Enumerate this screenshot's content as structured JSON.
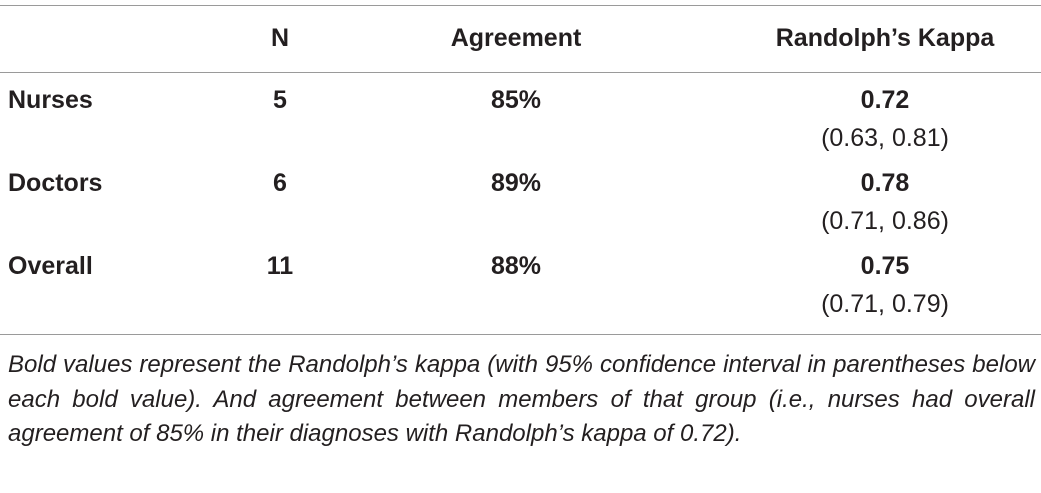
{
  "table": {
    "header": [
      "N",
      "Agreement",
      "Randolph’s Kappa"
    ],
    "rows": [
      {
        "label": "Nurses",
        "n": "5",
        "agreement": "85%",
        "kappa": "0.72",
        "ci": "(0.63, 0.81)"
      },
      {
        "label": "Doctors",
        "n": "6",
        "agreement": "89%",
        "kappa": "0.78",
        "ci": "(0.71, 0.86)"
      },
      {
        "label": "Overall",
        "n": "11",
        "agreement": "88%",
        "kappa": "0.75",
        "ci": "(0.71, 0.79)"
      }
    ],
    "footnote": "Bold values represent the Randolph’s kappa (with 95% confidence interval in parentheses below each bold value). And agreement between members of that group (i.e., nurses had overall agreement of 85% in their diagnoses with Randolph’s kappa of 0.72)."
  }
}
